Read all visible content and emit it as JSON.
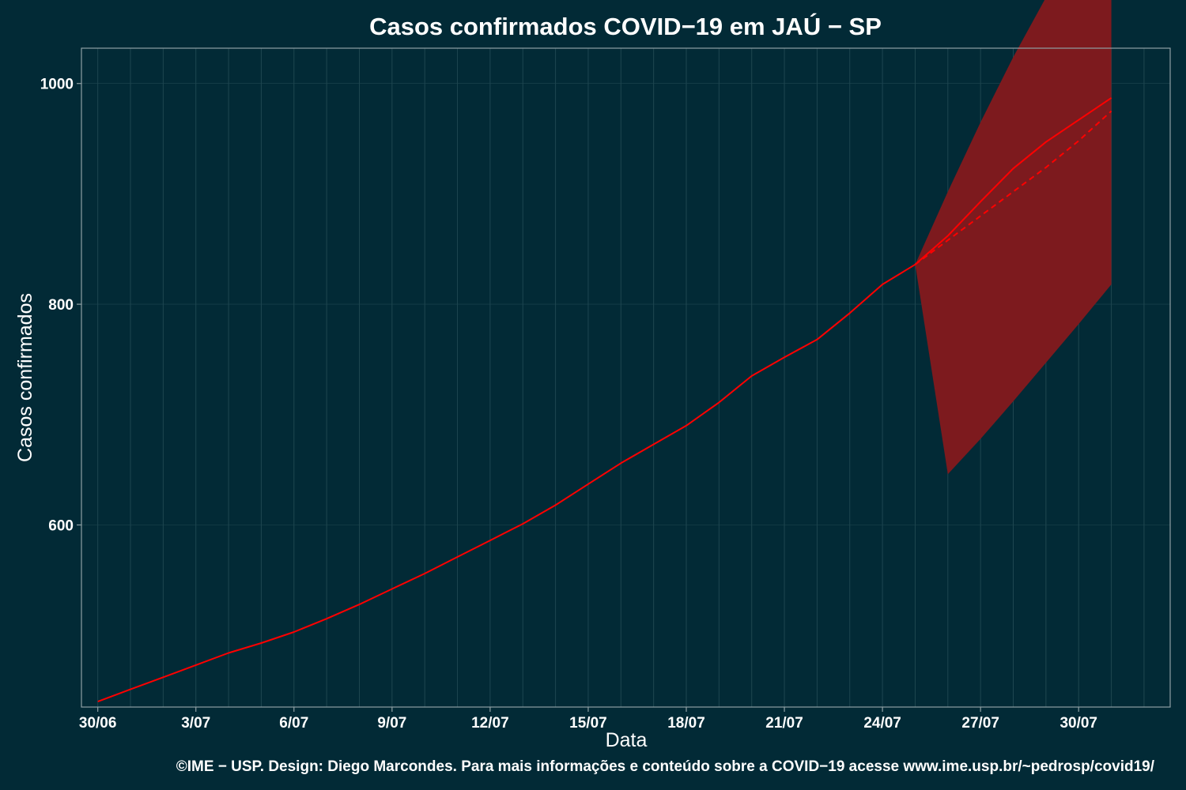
{
  "chart_data": {
    "type": "line",
    "title": "Casos confirmados COVID−19 em JAÚ − SP",
    "xlabel": "Data",
    "ylabel": "Casos confirmados",
    "x_tick_labels": [
      "30/06",
      "3/07",
      "6/07",
      "9/07",
      "12/07",
      "15/07",
      "18/07",
      "21/07",
      "24/07",
      "27/07",
      "30/07"
    ],
    "y_ticks": [
      600,
      800,
      1000
    ],
    "xlim": [
      -0.5,
      32.8
    ],
    "ylim": [
      435,
      1032
    ],
    "grid": true,
    "x": [
      "30/06",
      "1/07",
      "2/07",
      "3/07",
      "4/07",
      "5/07",
      "6/07",
      "7/07",
      "8/07",
      "9/07",
      "10/07",
      "11/07",
      "12/07",
      "13/07",
      "14/07",
      "15/07",
      "16/07",
      "17/07",
      "18/07",
      "19/07",
      "20/07",
      "21/07",
      "22/07",
      "23/07",
      "24/07",
      "25/07",
      "26/07",
      "27/07",
      "28/07",
      "29/07",
      "30/07",
      "31/07"
    ],
    "series": [
      {
        "style": "observed",
        "values": [
          440,
          451,
          462,
          473,
          484,
          493,
          503,
          515,
          528,
          542,
          556,
          571,
          586,
          601,
          618,
          637,
          656,
          673,
          690,
          711,
          735,
          752,
          768,
          792,
          818,
          836,
          null,
          null,
          null,
          null,
          null,
          null
        ]
      },
      {
        "style": "forecast-solid",
        "values": [
          null,
          null,
          null,
          null,
          null,
          null,
          null,
          null,
          null,
          null,
          null,
          null,
          null,
          null,
          null,
          null,
          null,
          null,
          null,
          null,
          null,
          null,
          null,
          null,
          null,
          836,
          862,
          893,
          923,
          947,
          967,
          987
        ]
      },
      {
        "style": "forecast-dashed",
        "values": [
          null,
          null,
          null,
          null,
          null,
          null,
          null,
          null,
          null,
          null,
          null,
          null,
          null,
          null,
          null,
          null,
          null,
          null,
          null,
          null,
          null,
          null,
          null,
          null,
          null,
          836,
          858,
          880,
          902,
          924,
          948,
          975
        ]
      }
    ],
    "band": {
      "x_from": 25,
      "lower": [
        836,
        646,
        678,
        712,
        747,
        782,
        818
      ],
      "upper": [
        836,
        902,
        965,
        1024,
        1078,
        1128,
        1177
      ]
    },
    "colors": {
      "background": "#022a36",
      "line": "#ff0000",
      "band": "#7d1a1e",
      "grid": "#1e4650",
      "frame": "#8fa0a4"
    }
  },
  "footer": "©IME − USP. Design: Diego Marcondes. Para mais informações e conteúdo sobre a COVID−19 acesse www.ime.usp.br/~pedrosp/covid19/"
}
